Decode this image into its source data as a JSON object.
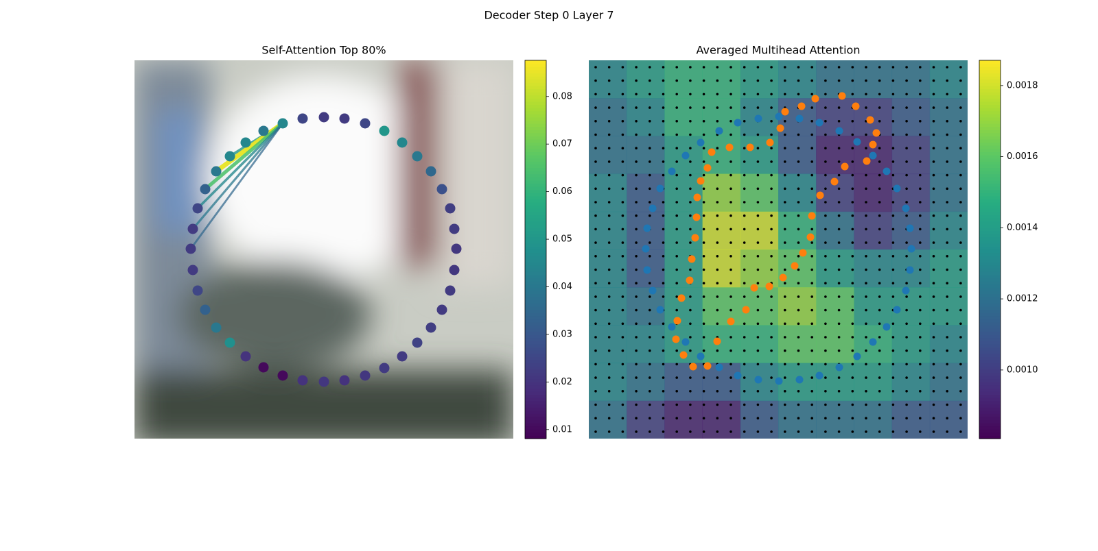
{
  "figure_title": "Decoder Step 0 Layer 7",
  "chart_data": [
    {
      "type": "scatter",
      "title": "Self-Attention Top 80%",
      "colormap": "viridis",
      "xlim": [
        0,
        552
      ],
      "ylim": [
        552,
        0
      ],
      "x": [
        188,
        216,
        245,
        276,
        306,
        336,
        364,
        390,
        412,
        432,
        448,
        460,
        466,
        469,
        466,
        460,
        448,
        432,
        412,
        390,
        364,
        336,
        306,
        276,
        245,
        216,
        188,
        162,
        139,
        119,
        103,
        92,
        85,
        82,
        85,
        92,
        103,
        119,
        139,
        162
      ],
      "y": [
        104,
        92,
        85,
        83,
        85,
        92,
        103,
        120,
        140,
        162,
        188,
        216,
        246,
        277,
        306,
        336,
        364,
        390,
        412,
        432,
        449,
        460,
        467,
        469,
        467,
        460,
        449,
        432,
        412,
        390,
        364,
        336,
        306,
        277,
        246,
        216,
        188,
        162,
        140,
        120
      ],
      "values": [
        0.01,
        0.01,
        0.02,
        0.021,
        0.02,
        0.021,
        0.022,
        0.022,
        0.024,
        0.023,
        0.022,
        0.022,
        0.021,
        0.021,
        0.022,
        0.023,
        0.028,
        0.035,
        0.04,
        0.045,
        0.05,
        0.025,
        0.022,
        0.022,
        0.025,
        0.045,
        0.04,
        0.045,
        0.045,
        0.04,
        0.033,
        0.025,
        0.022,
        0.022,
        0.022,
        0.025,
        0.033,
        0.04,
        0.048,
        0.02
      ],
      "edges": {
        "source": 25,
        "targets": [
          28,
          29,
          30,
          31,
          32,
          33
        ],
        "values": [
          0.05,
          0.085,
          0.065,
          0.045,
          0.04,
          0.035
        ]
      },
      "colorbar": {
        "clim": [
          0.0081,
          0.0876
        ],
        "ticks": [
          0.01,
          0.02,
          0.03,
          0.04,
          0.05,
          0.06,
          0.07,
          0.08
        ]
      }
    },
    {
      "type": "heatmap",
      "title": "Averaged Multihead Attention",
      "colormap": "viridis",
      "xlim": [
        0,
        552
      ],
      "ylim": [
        552,
        0
      ],
      "heatmap": [
        [
          0.0013,
          0.0014,
          0.0015,
          0.0015,
          0.0014,
          0.0013,
          0.0012,
          0.0012,
          0.0012,
          0.0013
        ],
        [
          0.0012,
          0.0013,
          0.0015,
          0.0015,
          0.0013,
          0.0011,
          0.001,
          0.001,
          0.0011,
          0.0012
        ],
        [
          0.0012,
          0.0012,
          0.0014,
          0.0015,
          0.0014,
          0.0011,
          0.0009,
          0.0009,
          0.001,
          0.0012
        ],
        [
          0.0013,
          0.0011,
          0.0014,
          0.0017,
          0.0016,
          0.0013,
          0.001,
          0.0009,
          0.001,
          0.0012
        ],
        [
          0.0013,
          0.0011,
          0.0014,
          0.0018,
          0.0018,
          0.0015,
          0.0012,
          0.001,
          0.0011,
          0.0013
        ],
        [
          0.0013,
          0.0011,
          0.0014,
          0.0018,
          0.0017,
          0.0016,
          0.0014,
          0.0013,
          0.0013,
          0.0014
        ],
        [
          0.0013,
          0.0012,
          0.0014,
          0.0016,
          0.0016,
          0.0017,
          0.0016,
          0.0014,
          0.0014,
          0.0014
        ],
        [
          0.0013,
          0.0013,
          0.0014,
          0.0015,
          0.0015,
          0.0016,
          0.0016,
          0.0015,
          0.0014,
          0.0013
        ],
        [
          0.0013,
          0.0012,
          0.0011,
          0.0011,
          0.0013,
          0.0014,
          0.0014,
          0.0014,
          0.0013,
          0.0012
        ],
        [
          0.0012,
          0.001,
          0.0009,
          0.0009,
          0.0011,
          0.0012,
          0.0012,
          0.0012,
          0.0011,
          0.0011
        ]
      ],
      "series": [
        {
          "color": "#1f77b4",
          "x": [
            217,
            247,
            277,
            307,
            336,
            365,
            391,
            414,
            434,
            449,
            462,
            468,
            470,
            468,
            462,
            449,
            434,
            414,
            391,
            365,
            336,
            307,
            277,
            247,
            217,
            190,
            163,
            141,
            121,
            104,
            93,
            85,
            83,
            85,
            93,
            104,
            121,
            141,
            163,
            190
          ],
          "y": [
            92,
            86,
            84,
            86,
            92,
            104,
            120,
            141,
            163,
            188,
            216,
            246,
            277,
            307,
            336,
            365,
            390,
            413,
            433,
            449,
            461,
            467,
            470,
            467,
            461,
            449,
            432,
            413,
            390,
            365,
            336,
            307,
            277,
            246,
            216,
            188,
            163,
            141,
            120,
            104
          ]
        },
        {
          "color": "#ff7f0e",
          "x": [
            152,
            173,
            138,
            127,
            129,
            135,
            147,
            150,
            155,
            157,
            158,
            163,
            173,
            179,
            205,
            235,
            264,
            279,
            286,
            310,
            330,
            369,
            389,
            410,
            419,
            414,
            405,
            373,
            358,
            337,
            325,
            323,
            312,
            300,
            283,
            263,
            241,
            229,
            207,
            187
          ],
          "y": [
            105,
            106,
            122,
            145,
            172,
            205,
            231,
            262,
            293,
            323,
            352,
            376,
            395,
            418,
            425,
            425,
            432,
            453,
            477,
            485,
            496,
            500,
            485,
            465,
            446,
            429,
            405,
            397,
            375,
            355,
            325,
            294,
            271,
            252,
            235,
            222,
            220,
            188,
            171,
            142
          ]
        }
      ],
      "colorbar": {
        "clim": [
          0.000807,
          0.001871
        ],
        "ticks": [
          {
            "value": 0.001,
            "label": "0.0010"
          },
          0.0012,
          0.0014,
          0.0016,
          0.0018
        ]
      }
    }
  ]
}
